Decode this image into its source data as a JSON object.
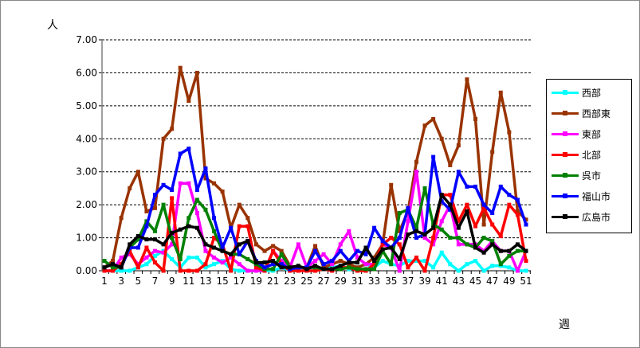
{
  "chart_data": {
    "type": "line",
    "title": "",
    "xlabel": "週",
    "ylabel": "人",
    "ylim": [
      0,
      7
    ],
    "yticks": [
      "0.00",
      "1.00",
      "2.00",
      "3.00",
      "4.00",
      "5.00",
      "6.00",
      "7.00"
    ],
    "x": [
      1,
      2,
      3,
      4,
      5,
      6,
      7,
      8,
      9,
      10,
      11,
      12,
      13,
      14,
      15,
      16,
      17,
      18,
      19,
      20,
      21,
      22,
      23,
      24,
      25,
      26,
      27,
      28,
      29,
      30,
      31,
      32,
      33,
      34,
      35,
      36,
      37,
      38,
      39,
      40,
      41,
      42,
      43,
      44,
      45,
      46,
      47,
      48,
      49,
      50,
      51
    ],
    "xticks": [
      "1",
      "3",
      "5",
      "7",
      "9",
      "11",
      "13",
      "15",
      "17",
      "19",
      "21",
      "23",
      "25",
      "27",
      "29",
      "31",
      "33",
      "35",
      "37",
      "39",
      "41",
      "43",
      "45",
      "47",
      "49",
      "51"
    ],
    "grid": "horizontal dashed",
    "legend": "right",
    "series": [
      {
        "name": "西部",
        "color": "#00FFFF",
        "values": [
          0,
          0,
          0,
          0,
          0.1,
          0.2,
          0.45,
          0.6,
          0.35,
          0.1,
          0.4,
          0.4,
          0.1,
          0.2,
          0.3,
          0.05,
          0,
          0,
          0,
          0,
          0,
          0.1,
          0,
          0,
          0.05,
          0.1,
          0.05,
          0.1,
          0.15,
          0.05,
          0.1,
          0.2,
          0.1,
          0.3,
          0.2,
          0.15,
          0.3,
          0.3,
          0.3,
          0.1,
          0.55,
          0.2,
          0,
          0.2,
          0.3,
          0,
          0.15,
          0.15,
          0.1,
          0,
          0
        ]
      },
      {
        "name": "西部東",
        "color": "#993300",
        "values": [
          0.1,
          0.3,
          1.6,
          2.5,
          3.0,
          1.8,
          1.9,
          4.0,
          4.3,
          6.15,
          5.15,
          6.0,
          2.8,
          2.65,
          2.4,
          1.3,
          2.0,
          1.6,
          0.8,
          0.6,
          0.75,
          0.6,
          0.15,
          0.1,
          0.1,
          0.75,
          0.1,
          0.2,
          0.3,
          0.2,
          0.1,
          0.2,
          0.4,
          0.8,
          2.6,
          1.2,
          1.8,
          3.3,
          4.4,
          4.6,
          4.0,
          3.2,
          3.8,
          5.8,
          4.6,
          1.4,
          3.6,
          5.4,
          4.2,
          1.8,
          1.55
        ]
      },
      {
        "name": "東部",
        "color": "#FF00FF",
        "values": [
          0,
          0,
          0.4,
          0.5,
          0.2,
          0.4,
          0.6,
          0.55,
          0.8,
          2.65,
          2.65,
          1.75,
          0.6,
          0.4,
          0.25,
          0.4,
          0.2,
          0,
          0,
          0,
          0.6,
          0.3,
          0.1,
          0.8,
          0.1,
          0.3,
          0.5,
          0.2,
          0.8,
          1.2,
          0.4,
          0.2,
          0.2,
          0.8,
          0.7,
          0,
          1.5,
          3.0,
          1.0,
          0.8,
          1.5,
          2.0,
          0.8,
          0.8,
          0.8,
          0.6,
          0.9,
          0.6,
          0.6,
          0,
          0.6
        ]
      },
      {
        "name": "北部",
        "color": "#FF0000",
        "values": [
          0,
          0,
          0.2,
          0.6,
          0.1,
          0.7,
          0.25,
          0,
          2.2,
          0,
          0,
          0,
          0.2,
          1.0,
          0.8,
          0,
          1.35,
          1.35,
          0.1,
          0,
          0.6,
          0.2,
          0,
          0,
          0,
          0,
          0.05,
          0,
          0.1,
          0.1,
          0,
          0,
          0.2,
          0.8,
          1.0,
          0.8,
          0.1,
          0.4,
          0,
          1.0,
          2.3,
          2.3,
          1.5,
          2.0,
          1.35,
          1.9,
          1.4,
          1.05,
          2.0,
          1.7,
          0.3
        ]
      },
      {
        "name": "呉市",
        "color": "#008000",
        "values": [
          0.3,
          0.1,
          0.1,
          0.7,
          0.95,
          1.5,
          1.2,
          2.0,
          1.0,
          0.35,
          1.6,
          2.15,
          1.85,
          1.2,
          0.6,
          0.5,
          0.5,
          0.35,
          0.2,
          0.05,
          0.05,
          0.5,
          0.1,
          0.1,
          0.1,
          0.1,
          0.05,
          0.05,
          0.05,
          0.1,
          0.05,
          0.05,
          0.05,
          0.6,
          0.2,
          1.75,
          1.85,
          1.3,
          2.5,
          1.4,
          1.25,
          1.0,
          1.0,
          0.8,
          0.7,
          1.0,
          0.9,
          0.2,
          0.45,
          0.6,
          0.6
        ]
      },
      {
        "name": "福山市",
        "color": "#0000FF",
        "values": [
          0.1,
          0.2,
          0.1,
          0.7,
          0.7,
          1.35,
          2.3,
          2.6,
          2.45,
          3.55,
          3.7,
          2.45,
          3.1,
          1.6,
          0.7,
          1.3,
          0.5,
          0.9,
          0.3,
          0.1,
          0.2,
          0.2,
          0.05,
          0.1,
          0.1,
          0.6,
          0.2,
          0.3,
          0.6,
          0.3,
          0.6,
          0.5,
          1.3,
          0.9,
          0.7,
          1.0,
          1.9,
          1.0,
          1.1,
          3.45,
          2.1,
          1.85,
          3.0,
          2.55,
          2.55,
          2.0,
          1.75,
          2.55,
          2.3,
          2.15,
          1.4
        ]
      },
      {
        "name": "広島市",
        "color": "#000000",
        "values": [
          0.1,
          0.2,
          0.1,
          0.8,
          1.05,
          0.95,
          0.95,
          0.8,
          1.15,
          1.25,
          1.35,
          1.3,
          0.8,
          0.7,
          0.6,
          0.5,
          0.8,
          0.9,
          0.25,
          0.25,
          0.3,
          0.1,
          0.1,
          0.15,
          0.05,
          0.15,
          0.05,
          0.05,
          0.15,
          0.25,
          0.25,
          0.7,
          0.3,
          0.65,
          0.7,
          0.35,
          1.1,
          1.2,
          1.1,
          1.3,
          2.3,
          2.0,
          1.3,
          1.8,
          0.7,
          0.55,
          0.8,
          0.6,
          0.6,
          0.8,
          0.6
        ]
      }
    ]
  }
}
